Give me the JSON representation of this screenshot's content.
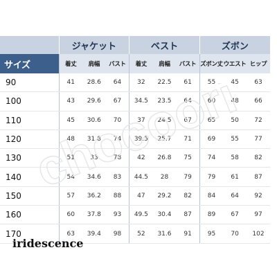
{
  "size_label": "サイズ",
  "groups": [
    {
      "label": "ジャケット",
      "columns": [
        "着丈",
        "肩幅",
        "バスト"
      ]
    },
    {
      "label": "ベスト",
      "columns": [
        "着丈",
        "肩幅",
        "バスト"
      ]
    },
    {
      "label": "ズボン",
      "columns": [
        "ズボン丈",
        "ウエスト",
        "ヒップ"
      ]
    }
  ],
  "rows": [
    {
      "size": "90",
      "values": [
        "41",
        "28.6",
        "64",
        "32",
        "22.5",
        "61",
        "55",
        "45",
        "63"
      ]
    },
    {
      "size": "100",
      "values": [
        "43",
        "29.6",
        "67",
        "34.5",
        "23.5",
        "64",
        "60",
        "48",
        "66"
      ]
    },
    {
      "size": "110",
      "values": [
        "45",
        "30.6",
        "70",
        "37",
        "24.5",
        "67",
        "65",
        "50",
        "72"
      ]
    },
    {
      "size": "120",
      "values": [
        "48",
        "31.8",
        "74",
        "39.5",
        "25.7",
        "71",
        "69",
        "55",
        "77"
      ]
    },
    {
      "size": "130",
      "values": [
        "51",
        "33",
        "78",
        "42",
        "26.8",
        "75",
        "74",
        "58",
        "82"
      ]
    },
    {
      "size": "140",
      "values": [
        "54",
        "34.6",
        "83",
        "44.5",
        "28",
        "79",
        "79",
        "61",
        "87"
      ]
    },
    {
      "size": "150",
      "values": [
        "57",
        "36.2",
        "88",
        "47",
        "29.2",
        "82",
        "84",
        "64",
        "92"
      ]
    },
    {
      "size": "160",
      "values": [
        "60",
        "37.8",
        "93",
        "49.5",
        "30.4",
        "87",
        "89",
        "67",
        "97"
      ]
    },
    {
      "size": "170",
      "values": [
        "63",
        "39.4",
        "98",
        "52",
        "31.6",
        "91",
        "95",
        "70",
        "102"
      ]
    }
  ],
  "watermark": "chocoori",
  "brand": "iridescence",
  "colors": {
    "header_dark": "#3d5f8b",
    "header_group": "#c8d2e0",
    "header_sub": "#dfe5ee"
  }
}
